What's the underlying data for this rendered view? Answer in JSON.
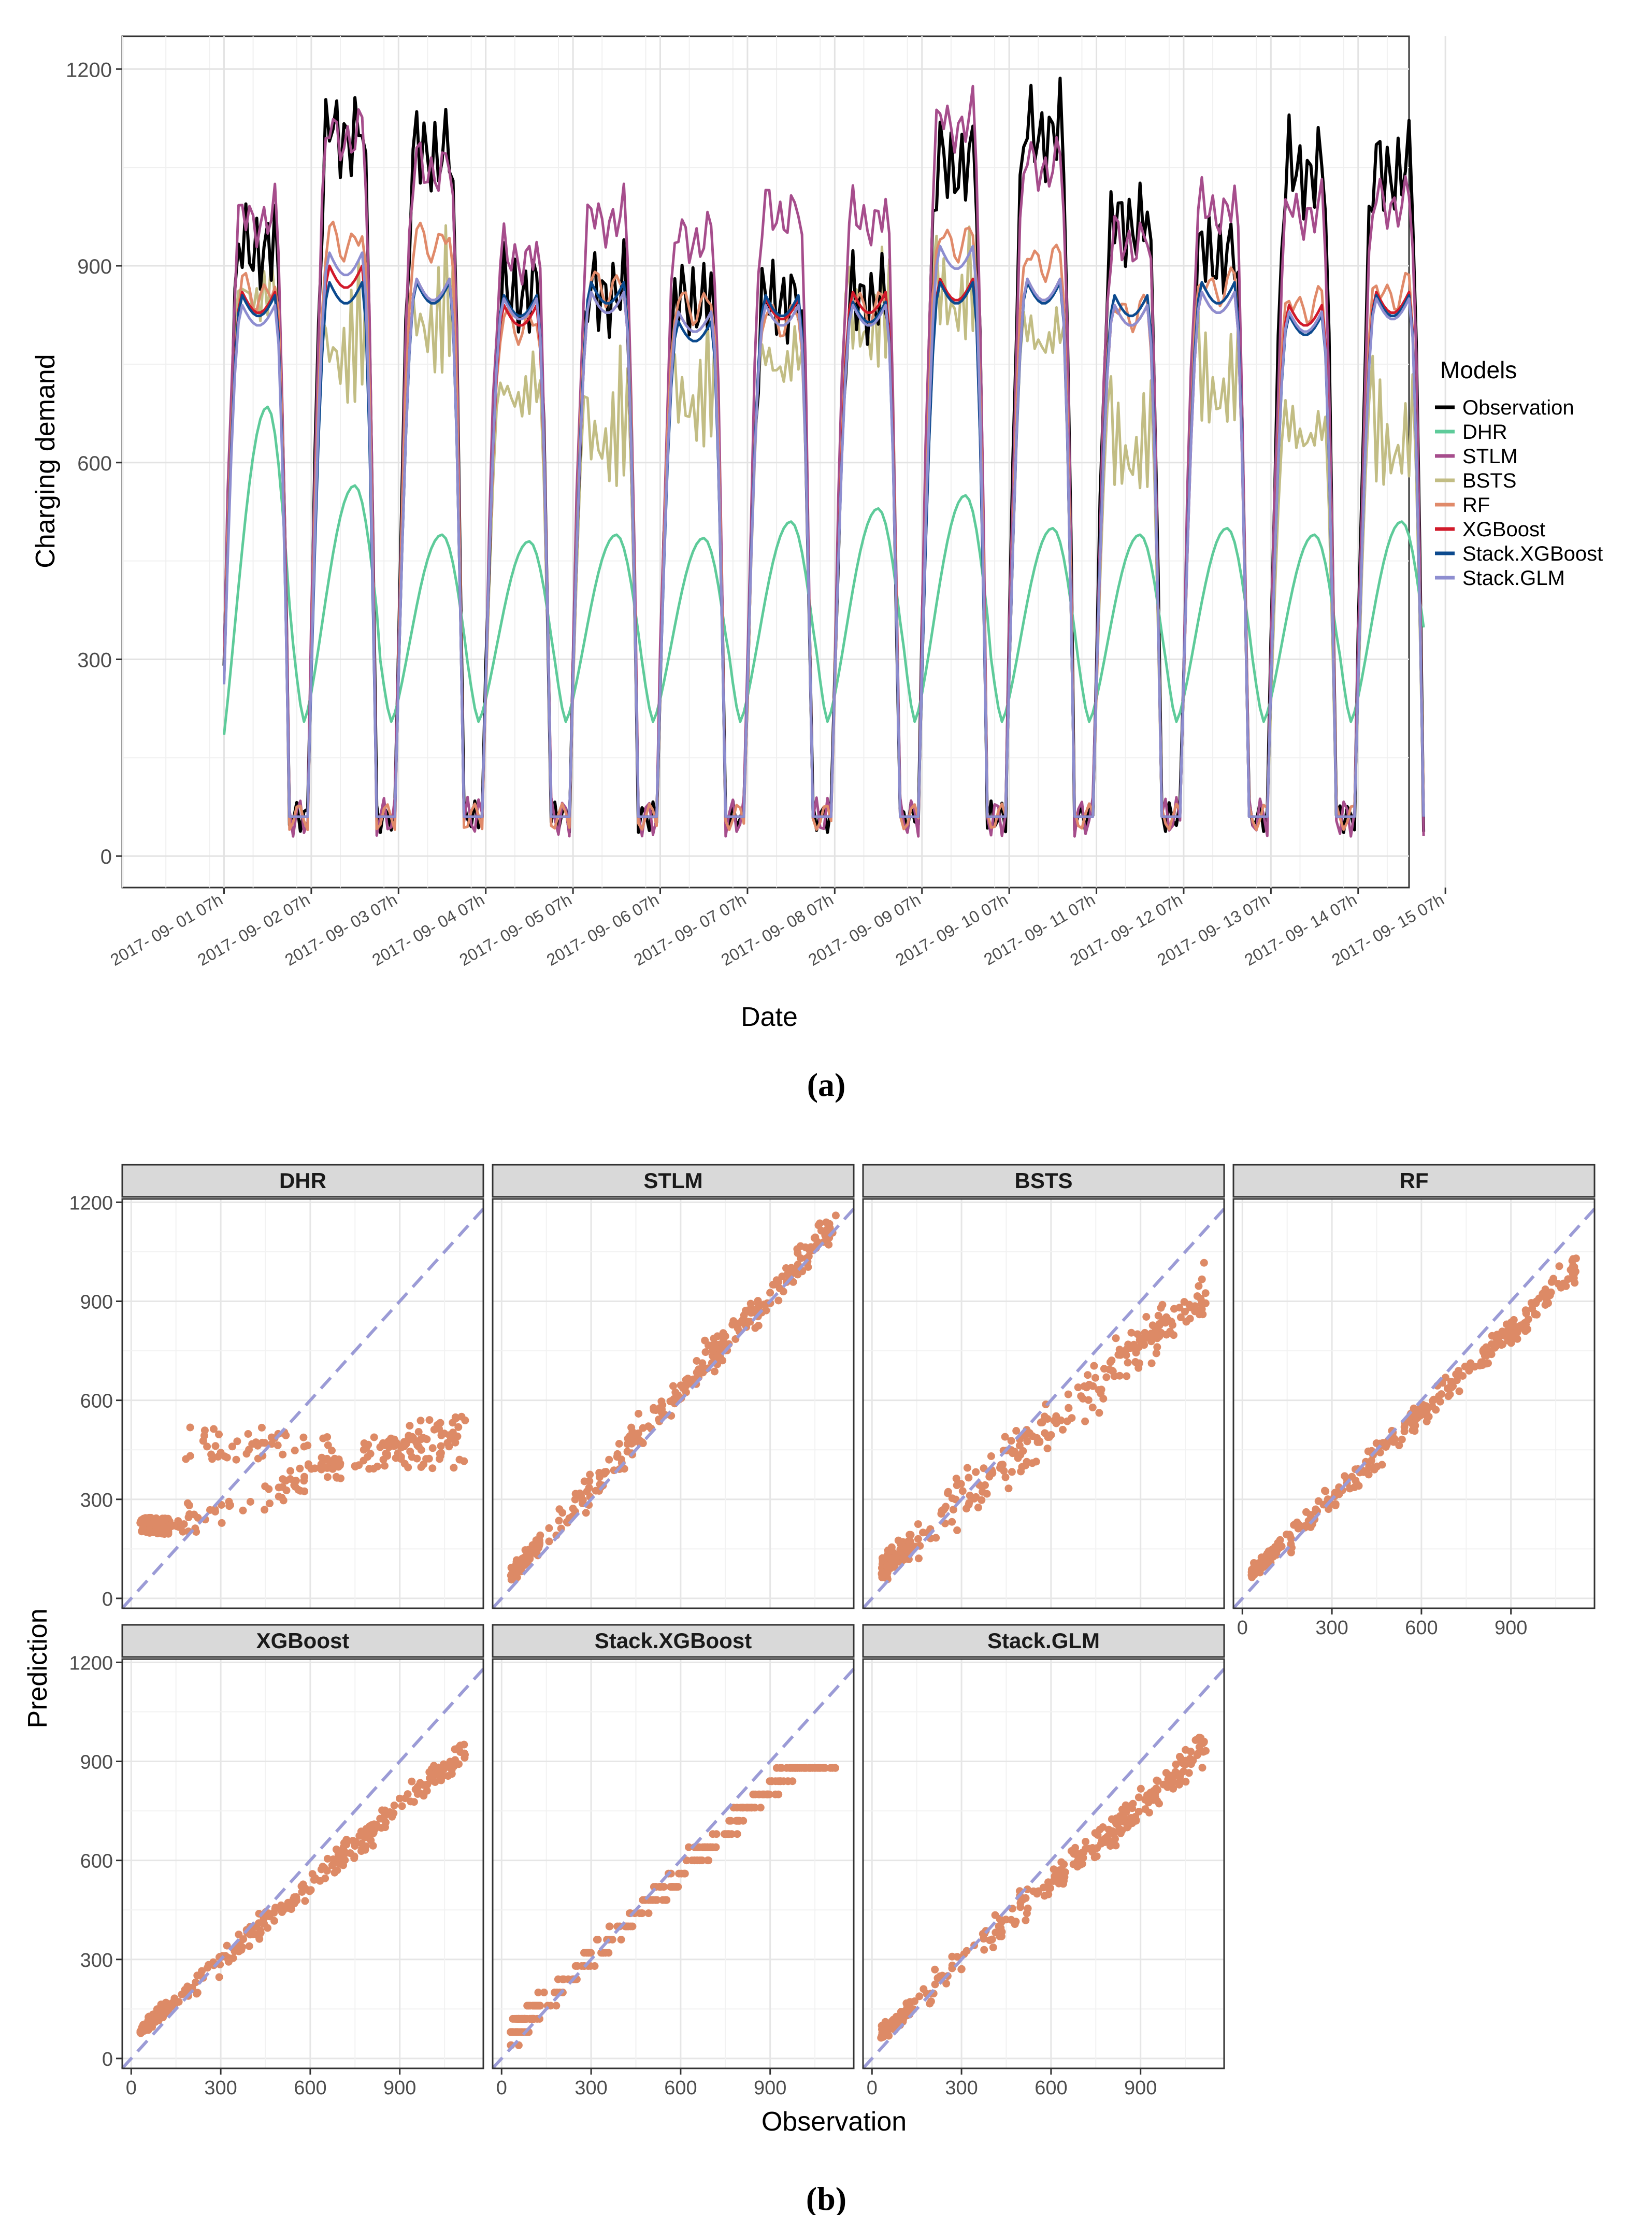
{
  "chart_data": [
    {
      "type": "line",
      "panel_label": "(a)",
      "xlabel": "Date",
      "ylabel": "Charging demand",
      "ylim": [
        0,
        1200
      ],
      "xlim_hours": [
        -28,
        326
      ],
      "yticks": [
        0,
        300,
        600,
        900,
        1200
      ],
      "xtick_labels": [
        "2017- 09- 01 07h",
        "2017- 09- 02 07h",
        "2017- 09- 03 07h",
        "2017- 09- 04 07h",
        "2017- 09- 05 07h",
        "2017- 09- 06 07h",
        "2017- 09- 07 07h",
        "2017- 09- 08 07h",
        "2017- 09- 09 07h",
        "2017- 09- 10 07h",
        "2017- 09- 11 07h",
        "2017- 09- 12 07h",
        "2017- 09- 13 07h",
        "2017- 09- 14 07h",
        "2017- 09- 15 07h"
      ],
      "legend_title": "Models",
      "legend_position": "right",
      "series": [
        {
          "name": "Observation",
          "color": "#000000",
          "daily_peaks": [
            950,
            1130,
            1100,
            880,
            880,
            870,
            870,
            870,
            1080,
            1130,
            990,
            940,
            1070,
            1070
          ]
        },
        {
          "name": "DHR",
          "color": "#5ecb9a",
          "daily_peaks": [
            685,
            565,
            490,
            480,
            490,
            485,
            510,
            530,
            550,
            500,
            490,
            500,
            490,
            510
          ]
        },
        {
          "name": "STLM",
          "color": "#a64d8c",
          "daily_peaks": [
            995,
            1125,
            1075,
            935,
            995,
            965,
            1005,
            995,
            1145,
            1080,
            960,
            1010,
            1005,
            1020
          ]
        },
        {
          "name": "BSTS",
          "color": "#c2bd84",
          "daily_peaks": [
            935,
            935,
            980,
            780,
            800,
            860,
            830,
            980,
            1020,
            870,
            780,
            880,
            720,
            790
          ]
        },
        {
          "name": "RF",
          "color": "#e08a6a",
          "daily_peaks": [
            880,
            960,
            960,
            830,
            890,
            860,
            840,
            860,
            960,
            930,
            850,
            890,
            860,
            880
          ]
        },
        {
          "name": "XGBoost",
          "color": "#d11a2a",
          "daily_peaks": [
            860,
            900,
            880,
            840,
            860,
            830,
            850,
            860,
            880,
            880,
            840,
            860,
            840,
            860
          ]
        },
        {
          "name": "Stack.XGBoost",
          "color": "#0c4a8e",
          "daily_peaks": [
            855,
            875,
            875,
            855,
            875,
            815,
            855,
            845,
            875,
            875,
            855,
            875,
            825,
            855
          ]
        },
        {
          "name": "Stack.GLM",
          "color": "#8e8ed0",
          "daily_peaks": [
            840,
            920,
            880,
            850,
            860,
            830,
            840,
            840,
            930,
            880,
            840,
            860,
            830,
            850
          ]
        }
      ]
    },
    {
      "type": "scatter",
      "panel_label": "(b)",
      "xlabel": "Observation",
      "ylabel": "Prediction",
      "xlim": [
        -30,
        1180
      ],
      "ylim": [
        -30,
        1210
      ],
      "xticks": [
        0,
        300,
        600,
        900
      ],
      "yticks": [
        0,
        300,
        600,
        900,
        1200
      ],
      "reference_line": "y = x",
      "point_color": "#dd8a66",
      "line_color": "#9b9bd6",
      "facets": [
        {
          "name": "DHR",
          "slope": 0.28,
          "intercept": 210,
          "noise": 60
        },
        {
          "name": "STLM",
          "slope": 0.98,
          "intercept": 40,
          "noise": 80
        },
        {
          "name": "BSTS",
          "slope": 0.78,
          "intercept": 60,
          "noise": 110
        },
        {
          "name": "RF",
          "slope": 0.85,
          "intercept": 50,
          "noise": 60
        },
        {
          "name": "XGBoost",
          "slope": 0.78,
          "intercept": 60,
          "noise": 60
        },
        {
          "name": "Stack.XGBoost",
          "slope": 0.85,
          "intercept": 50,
          "noise": 50
        },
        {
          "name": "Stack.GLM",
          "slope": 0.8,
          "intercept": 50,
          "noise": 70
        }
      ]
    }
  ]
}
